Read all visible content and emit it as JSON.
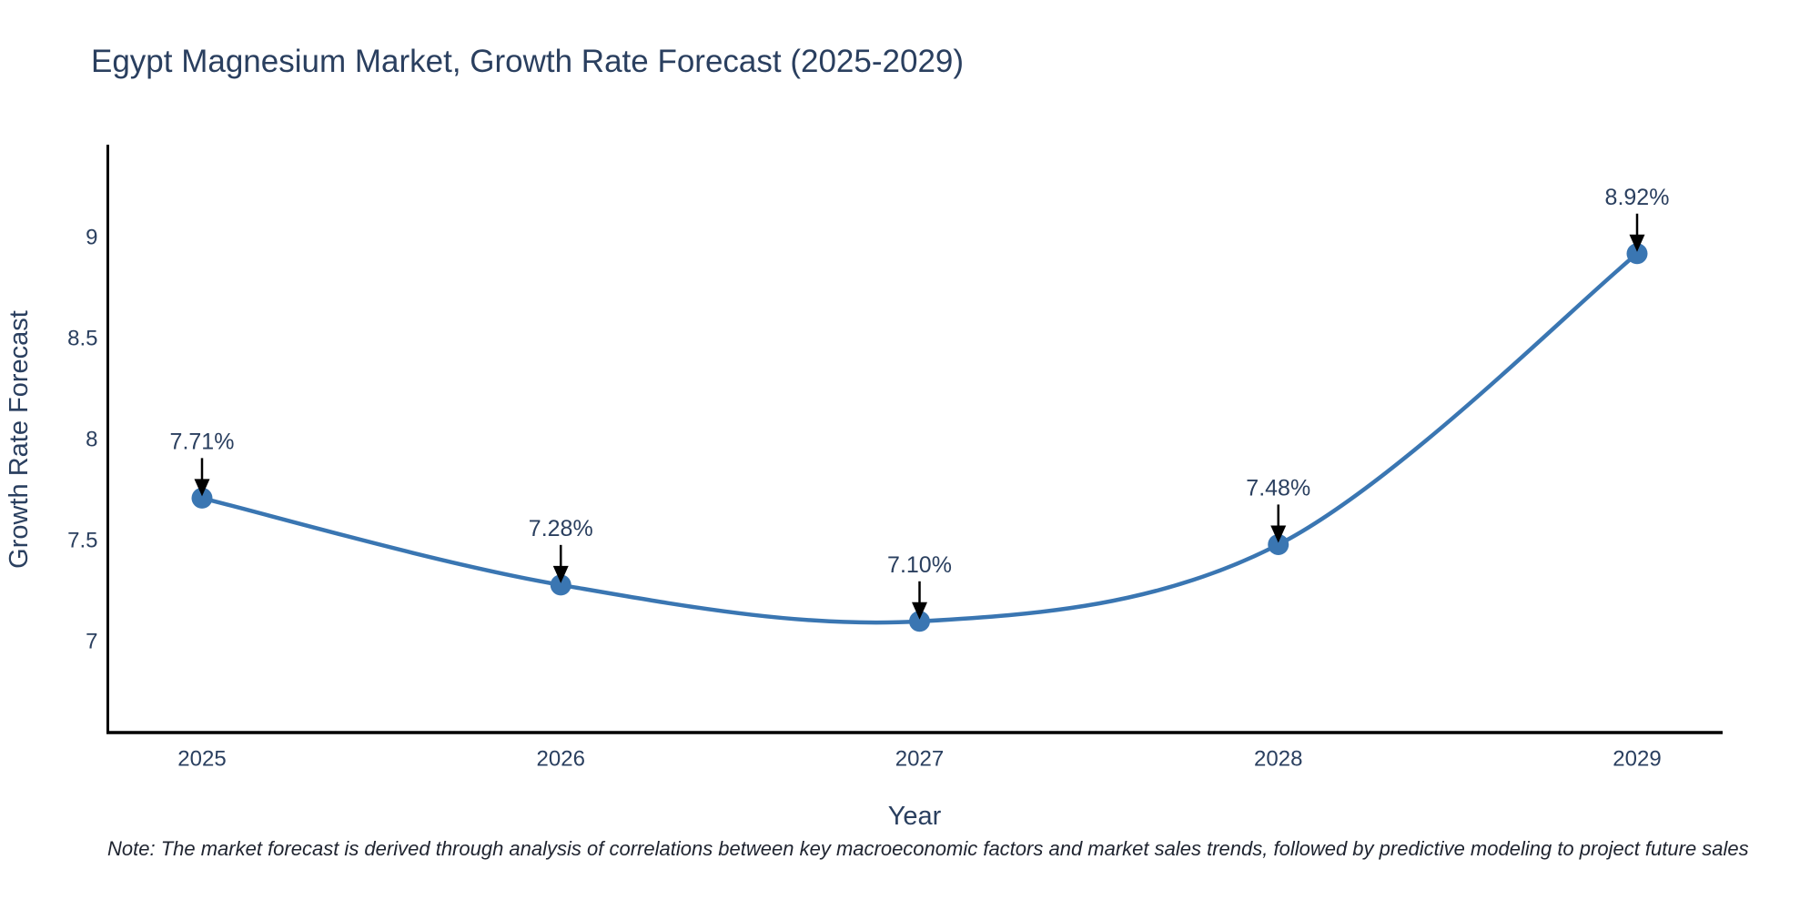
{
  "title": "Egypt Magnesium Market, Growth Rate Forecast (2025-2029)",
  "note": "Note: The market forecast is derived through analysis of correlations between key macroeconomic factors and market sales trends, followed by predictive modeling to project future sales",
  "chart_data": {
    "type": "line",
    "title": "Egypt Magnesium Market, Growth Rate Forecast (2025-2029)",
    "xlabel": "Year",
    "ylabel": "Growth Rate Forecast",
    "categories": [
      "2025",
      "2026",
      "2027",
      "2028",
      "2029"
    ],
    "values": [
      7.71,
      7.28,
      7.1,
      7.48,
      8.92
    ],
    "point_labels": [
      "7.71%",
      "7.28%",
      "7.10%",
      "7.48%",
      "8.92%"
    ],
    "yticks": [
      7,
      7.5,
      8,
      8.5,
      9
    ],
    "ylim": [
      6.55,
      9.45
    ],
    "line_shape": "spline",
    "grid": false,
    "legend": false,
    "colors": {
      "line": "#3a76b2",
      "marker": "#3a76b2",
      "axis": "#000000",
      "text": "#2a3f5f",
      "arrow": "#000000"
    }
  }
}
